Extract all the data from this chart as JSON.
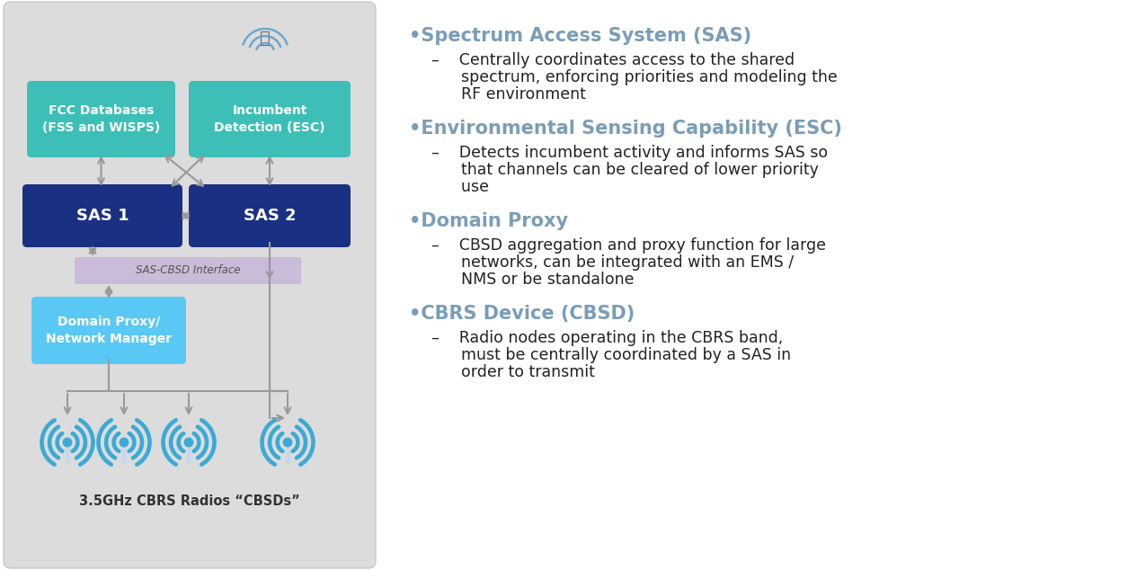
{
  "diagram_bg": "#dcdcdc",
  "teal_color": "#3dbfb8",
  "dark_blue": "#1a3082",
  "light_blue": "#5ac8f5",
  "purple_color": "#c8b8d8",
  "arrow_color": "#999999",
  "box_fcc_label": "FCC Databases\n(FSS and WISPS)",
  "box_esc_label": "Incumbent\nDetection (ESC)",
  "box_sas1_label": "SAS 1",
  "box_sas2_label": "SAS 2",
  "box_proxy_label": "Domain Proxy/\nNetwork Manager",
  "interface_label": "SAS-CBSD Interface",
  "cbsd_label": "3.5GHz CBRS Radios “CBSDs”",
  "wifi_color": "#3baad4",
  "antenna_color": "#c8d8e8",
  "bullets": [
    {
      "header": "•Spectrum Access System (SAS)",
      "lines": [
        "–    Centrally coordinates access to the shared",
        "      spectrum, enforcing priorities and modeling the",
        "      RF environment"
      ]
    },
    {
      "header": "•Environmental Sensing Capability (ESC)",
      "lines": [
        "–    Detects incumbent activity and informs SAS so",
        "      that channels can be cleared of lower priority",
        "      use"
      ]
    },
    {
      "header": "•Domain Proxy",
      "lines": [
        "–    CBSD aggregation and proxy function for large",
        "      networks, can be integrated with an EMS /",
        "      NMS or be standalone"
      ]
    },
    {
      "header": "•CBRS Device (CBSD)",
      "lines": [
        "–    Radio nodes operating in the CBRS band,",
        "      must be centrally coordinated by a SAS in",
        "      order to transmit"
      ]
    }
  ],
  "header_color": "#7a9db8",
  "body_color": "#222222"
}
